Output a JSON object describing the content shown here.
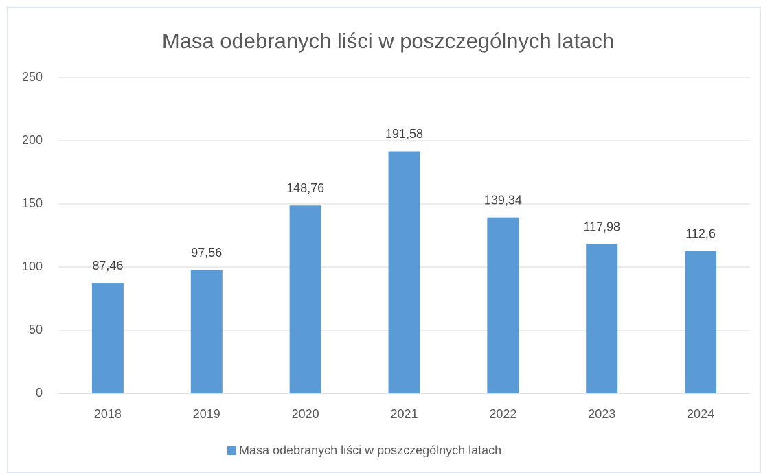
{
  "chart_data": {
    "type": "bar",
    "title": "Masa odebranych liści w poszczególnych latach",
    "categories": [
      "2018",
      "2019",
      "2020",
      "2021",
      "2022",
      "2023",
      "2024"
    ],
    "series": [
      {
        "name": "Masa odebranych liści w poszczególnych latach",
        "color": "#5b9bd5",
        "values": [
          87.46,
          97.56,
          148.76,
          191.58,
          139.34,
          117.98,
          112.6
        ],
        "value_labels": [
          "87,46",
          "97,56",
          "148,76",
          "191,58",
          "139,34",
          "117,98",
          "112,6"
        ]
      }
    ],
    "ylim": [
      0,
      250
    ],
    "yticks": [
      0,
      50,
      100,
      150,
      200,
      250
    ],
    "grid": true,
    "legend": "bottom"
  }
}
